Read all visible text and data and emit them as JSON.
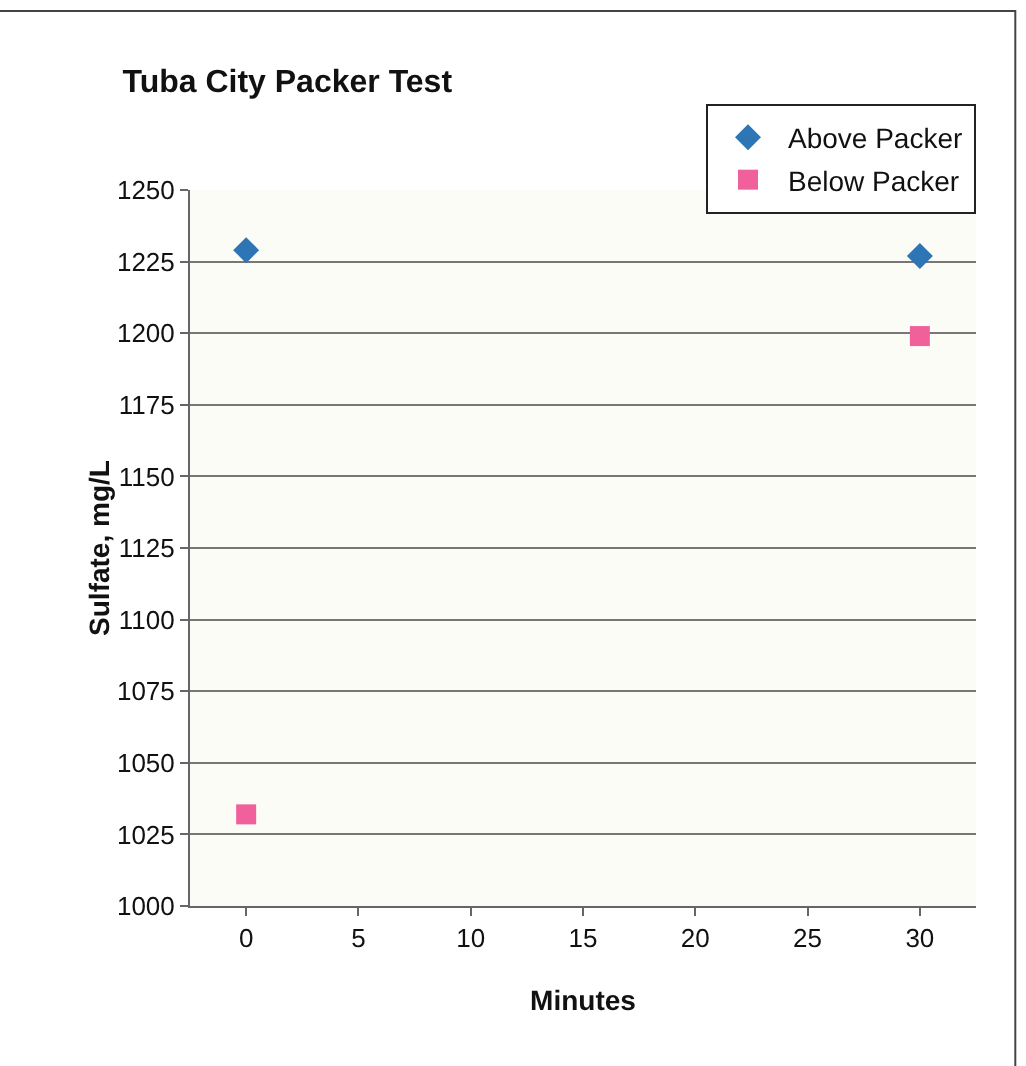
{
  "chart_data": {
    "type": "scatter",
    "title": "Tuba City Packer Test",
    "xlabel": "Minutes",
    "ylabel": "Sulfate, mg/L",
    "x": [
      0,
      30
    ],
    "series": [
      {
        "name": "Above Packer",
        "color": "#2e75b6",
        "values": [
          1229,
          1227
        ],
        "marker": "diamond"
      },
      {
        "name": "Below Packer",
        "color": "#f0609a",
        "values": [
          1032,
          1199
        ],
        "marker": "square"
      }
    ],
    "xlim": [
      -2.5,
      32.5
    ],
    "xticks": [
      0,
      5,
      10,
      15,
      20,
      25,
      30
    ],
    "ylim": [
      1000,
      1250
    ],
    "yticks": [
      1000,
      1025,
      1050,
      1075,
      1100,
      1125,
      1150,
      1175,
      1200,
      1225,
      1250
    ],
    "grid": "y",
    "legend": "top right"
  }
}
